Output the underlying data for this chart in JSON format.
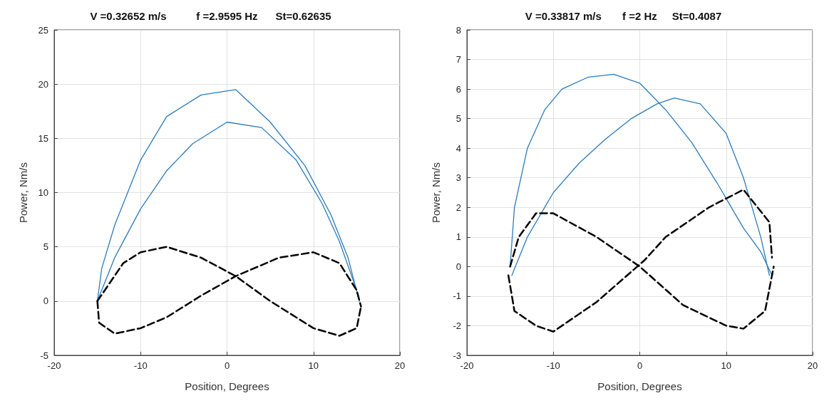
{
  "chart_data": [
    {
      "type": "line",
      "title": "V =0.32652 m/s          f =2.9595 Hz      St=0.62635",
      "xlabel": "Position, Degrees",
      "ylabel": "Power, Nm/s",
      "xlim": [
        -20,
        20
      ],
      "xticks": [
        -20,
        -10,
        0,
        10,
        20
      ],
      "ylim": [
        -5,
        25
      ],
      "yticks": [
        -5,
        0,
        5,
        10,
        15,
        20,
        25
      ],
      "grid": true,
      "marker": "none",
      "series": [
        {
          "color": "#2b7bba",
          "line_style": "solid",
          "x": [
            -15,
            -14.5,
            -13,
            -10,
            -7,
            -3,
            1,
            5,
            9,
            12,
            14,
            15.3
          ],
          "values": [
            0,
            3,
            7,
            13,
            17,
            19,
            19.5,
            16.5,
            12.5,
            8,
            4,
            0
          ]
        },
        {
          "color": "#2b7bba",
          "line_style": "solid",
          "x": [
            -15,
            -13,
            -10,
            -7,
            -4,
            0,
            4,
            8,
            11,
            13,
            15,
            15.3
          ],
          "values": [
            0,
            4,
            8.5,
            12,
            14.5,
            16.5,
            16,
            13,
            9,
            5.5,
            1,
            0
          ]
        },
        {
          "color": "#000000",
          "line_style": "dashed",
          "x": [
            -15,
            -12,
            -10,
            -7,
            -3,
            1,
            5,
            10,
            13,
            15,
            15.5
          ],
          "values": [
            0,
            3.5,
            4.5,
            5,
            4,
            2.3,
            0,
            -2.5,
            -3.2,
            -2.5,
            -0.5
          ]
        },
        {
          "color": "#000000",
          "line_style": "dashed",
          "x": [
            -15,
            -14.8,
            -13,
            -10,
            -7,
            -3,
            1,
            6,
            10,
            13,
            15,
            15.5
          ],
          "values": [
            0,
            -2,
            -3,
            -2.5,
            -1.5,
            0.5,
            2.3,
            4,
            4.5,
            3.5,
            1,
            -0.5
          ]
        }
      ]
    },
    {
      "type": "line",
      "title": "V =0.33817 m/s       f =2 Hz     St=0.4087",
      "xlabel": "Position, Degrees",
      "ylabel": "Power, Nm/s",
      "xlim": [
        -20,
        20
      ],
      "xticks": [
        -20,
        -10,
        0,
        10,
        20
      ],
      "ylim": [
        -3,
        8
      ],
      "yticks": [
        -3,
        -2,
        -1,
        0,
        1,
        2,
        3,
        4,
        5,
        6,
        7,
        8
      ],
      "grid": true,
      "marker": "none",
      "series": [
        {
          "color": "#2b7bba",
          "line_style": "solid",
          "x": [
            -15,
            -14.5,
            -13,
            -11,
            -9,
            -6,
            -3,
            0,
            3,
            6,
            9,
            12,
            14,
            15.3
          ],
          "values": [
            0,
            2,
            4,
            5.3,
            6,
            6.4,
            6.5,
            6.2,
            5.3,
            4.2,
            2.8,
            1.3,
            0.5,
            -0.3
          ]
        },
        {
          "color": "#2b7bba",
          "line_style": "solid",
          "x": [
            -14.8,
            -13,
            -10,
            -7,
            -4,
            -1,
            2,
            4,
            7,
            10,
            12,
            14,
            15
          ],
          "values": [
            -0.3,
            1,
            2.5,
            3.5,
            4.3,
            5,
            5.5,
            5.7,
            5.5,
            4.5,
            3,
            1,
            -0.3
          ]
        },
        {
          "color": "#000000",
          "line_style": "dashed",
          "x": [
            -15,
            -14,
            -12,
            -10,
            -5,
            0,
            5,
            10,
            12,
            14.5,
            15.5
          ],
          "values": [
            0,
            1,
            1.8,
            1.8,
            1,
            0,
            -1.3,
            -2,
            -2.1,
            -1.5,
            0
          ]
        },
        {
          "color": "#000000",
          "line_style": "dashed",
          "x": [
            -15.2,
            -14.5,
            -12,
            -10,
            -5,
            0.5,
            3,
            8,
            12,
            15,
            15.3
          ],
          "values": [
            -0.3,
            -1.5,
            -2,
            -2.2,
            -1.2,
            0.2,
            1,
            2,
            2.6,
            1.5,
            0.3
          ]
        }
      ]
    }
  ]
}
